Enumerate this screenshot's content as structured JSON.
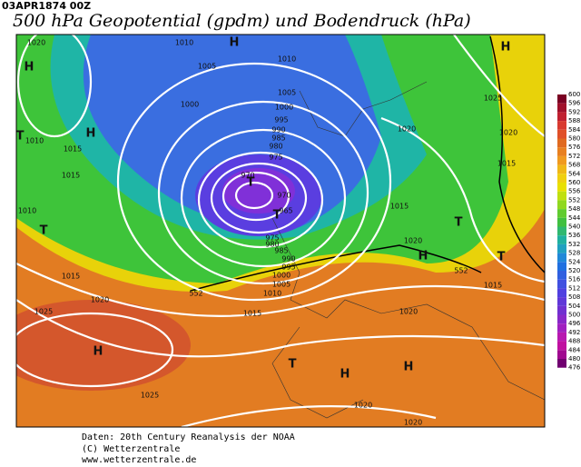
{
  "header": {
    "date": "03APR1874 00Z",
    "title": "500 hPa Geopotential (gpdm) und Bodendruck (hPa)"
  },
  "colorbar": {
    "ticks": [
      600,
      596,
      592,
      588,
      584,
      580,
      576,
      572,
      568,
      564,
      560,
      556,
      552,
      548,
      544,
      540,
      536,
      532,
      528,
      524,
      520,
      516,
      512,
      508,
      504,
      500,
      496,
      492,
      488,
      484,
      480,
      476
    ]
  },
  "map_labels": [
    "1020",
    "1010",
    "H",
    "1010",
    "H",
    "1005",
    "1000",
    "1005",
    "1000",
    "995",
    "990",
    "985",
    "980",
    "975",
    "970",
    "T",
    "970",
    "965",
    "T",
    "H",
    "T",
    "1010",
    "1015",
    "1015",
    "1010",
    "T",
    "975",
    "980",
    "985",
    "990",
    "995",
    "1000",
    "1005",
    "1010",
    "552",
    "1015",
    "1020",
    "1025",
    "H",
    "1025",
    "1015",
    "1015",
    "1020",
    "H",
    "T",
    "1020",
    "T",
    "H",
    "H",
    "1020",
    "1020",
    "H",
    "1025",
    "1020",
    "1020",
    "1015",
    "T",
    "1015",
    "552"
  ],
  "footer": [
    "Daten: 20th Century Reanalysis der NOAA",
    "(C) Wetterzentrale",
    "www.wetterzentrale.de"
  ]
}
